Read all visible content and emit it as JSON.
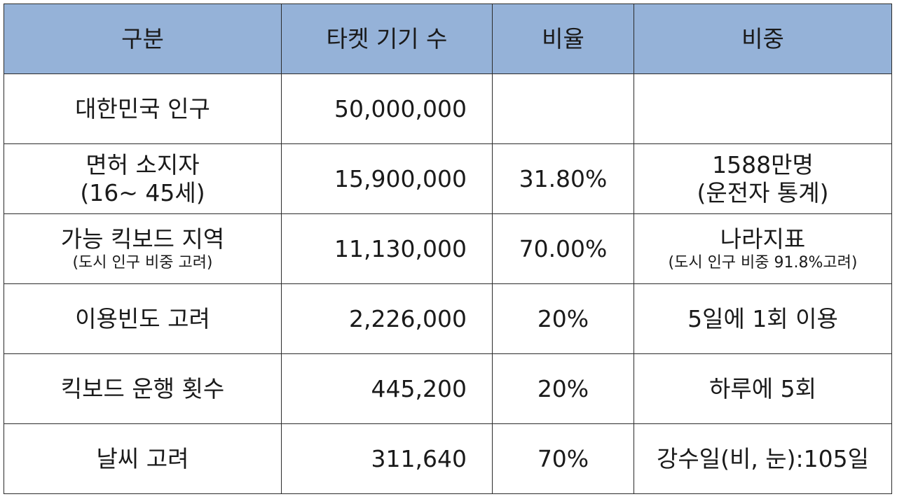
{
  "headers": [
    "구분",
    "타켓 기기 수",
    "비율",
    "비중"
  ],
  "rows": [
    {
      "label": "대한민국 인구",
      "label_sub": "",
      "count": "50,000,000",
      "ratio": "",
      "note": "",
      "note_sub": ""
    },
    {
      "label": "면허 소지자",
      "label_sub": "(16~ 45세)",
      "count": "15,900,000",
      "ratio": "31.80%",
      "note": "1588만명",
      "note_sub": "(운전자 통계)"
    },
    {
      "label": "가능 킥보드 지역",
      "label_sub": "(도시 인구 비중 고려)",
      "count": "11,130,000",
      "ratio": "70.00%",
      "note": "나라지표",
      "note_sub": "(도시 인구 비중 91.8%고려)"
    },
    {
      "label": "이용빈도 고려",
      "label_sub": "",
      "count": "2,226,000",
      "ratio": "20%",
      "note": "5일에 1회 이용",
      "note_sub": ""
    },
    {
      "label": "킥보드 운행 횟수",
      "label_sub": "",
      "count": "445,200",
      "ratio": "20%",
      "note": "하루에 5회",
      "note_sub": ""
    },
    {
      "label": "날씨 고려",
      "label_sub": "",
      "count": "311,640",
      "ratio": "70%",
      "note": "강수일(비, 눈):105일",
      "note_sub": ""
    }
  ]
}
